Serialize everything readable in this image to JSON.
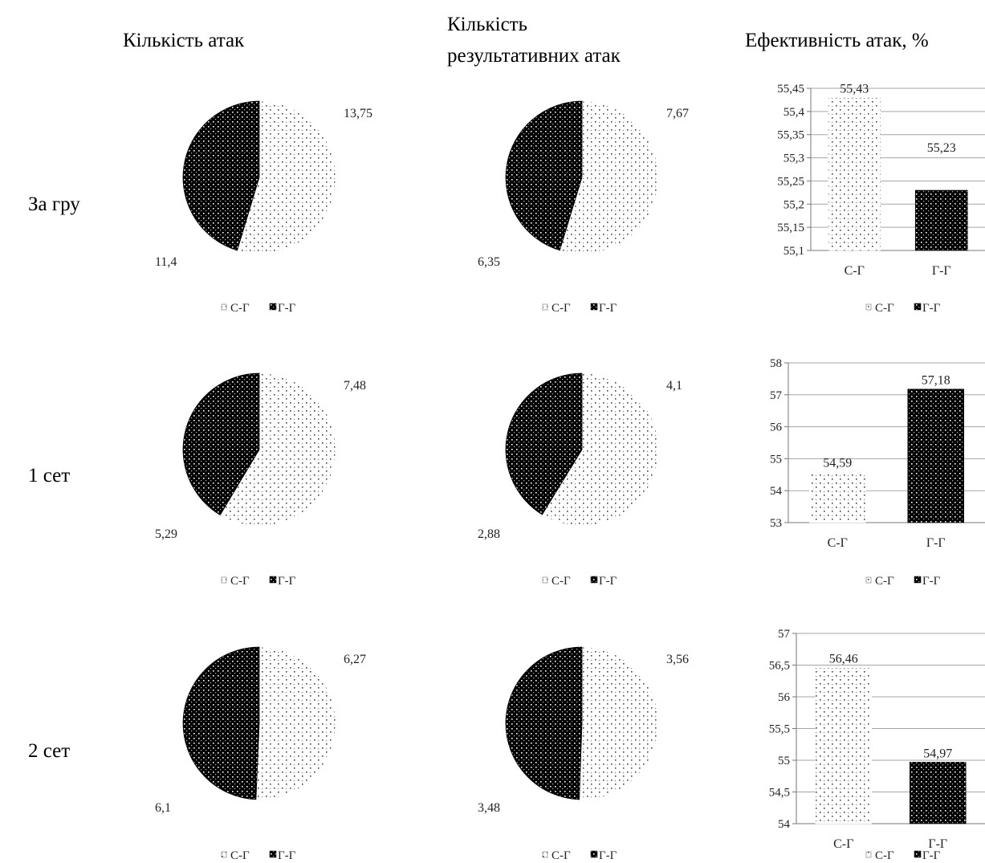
{
  "header": {
    "columns": [
      {
        "lines": [
          "Кількість атак"
        ]
      },
      {
        "lines": [
          "Кількість",
          "результативних атак"
        ]
      },
      {
        "lines": [
          "Ефективність атак, %"
        ]
      }
    ]
  },
  "rows": [
    {
      "label": "За гру"
    },
    {
      "label": "1 сет"
    },
    {
      "label": "2 сет"
    }
  ],
  "series_labels": [
    "С-Г",
    "Г-Г"
  ],
  "chart_data": [
    {
      "type": "pie",
      "row": 0,
      "col": 0,
      "categories": [
        "С-Г",
        "Г-Г"
      ],
      "values": [
        13.75,
        11.4
      ],
      "value_labels": [
        "13,75",
        "11,4"
      ]
    },
    {
      "type": "pie",
      "row": 0,
      "col": 1,
      "categories": [
        "С-Г",
        "Г-Г"
      ],
      "values": [
        7.67,
        6.35
      ],
      "value_labels": [
        "7,67",
        "6,35"
      ]
    },
    {
      "type": "bar",
      "row": 0,
      "col": 2,
      "categories": [
        "С-Г",
        "Г-Г"
      ],
      "values": [
        55.43,
        55.23
      ],
      "value_labels": [
        "55,43",
        "55,23"
      ],
      "ylim": [
        55.1,
        55.45
      ],
      "ticks": [
        55.1,
        55.15,
        55.2,
        55.25,
        55.3,
        55.35,
        55.4,
        55.45
      ],
      "tick_labels": [
        "55,1",
        "55,15",
        "55,2",
        "55,25",
        "55,3",
        "55,35",
        "55,4",
        "55,45"
      ],
      "grid": true
    },
    {
      "type": "pie",
      "row": 1,
      "col": 0,
      "categories": [
        "С-Г",
        "Г-Г"
      ],
      "values": [
        7.48,
        5.29
      ],
      "value_labels": [
        "7,48",
        "5,29"
      ]
    },
    {
      "type": "pie",
      "row": 1,
      "col": 1,
      "categories": [
        "С-Г",
        "Г-Г"
      ],
      "values": [
        4.1,
        2.88
      ],
      "value_labels": [
        "4,1",
        "2,88"
      ]
    },
    {
      "type": "bar",
      "row": 1,
      "col": 2,
      "categories": [
        "С-Г",
        "Г-Г"
      ],
      "values": [
        54.59,
        57.18
      ],
      "value_labels": [
        "54,59",
        "57,18"
      ],
      "ylim": [
        53,
        58
      ],
      "ticks": [
        53,
        54,
        55,
        56,
        57,
        58
      ],
      "tick_labels": [
        "53",
        "54",
        "55",
        "56",
        "57",
        "58"
      ],
      "grid": true
    },
    {
      "type": "pie",
      "row": 2,
      "col": 0,
      "categories": [
        "С-Г",
        "Г-Г"
      ],
      "values": [
        6.27,
        6.1
      ],
      "value_labels": [
        "6,27",
        "6,1"
      ]
    },
    {
      "type": "pie",
      "row": 2,
      "col": 1,
      "categories": [
        "С-Г",
        "Г-Г"
      ],
      "values": [
        3.56,
        3.48
      ],
      "value_labels": [
        "3,56",
        "3,48"
      ]
    },
    {
      "type": "bar",
      "row": 2,
      "col": 2,
      "categories": [
        "С-Г",
        "Г-Г"
      ],
      "values": [
        56.46,
        54.97
      ],
      "value_labels": [
        "56,46",
        "54,97"
      ],
      "ylim": [
        54,
        57
      ],
      "ticks": [
        54,
        54.5,
        55,
        55.5,
        56,
        56.5,
        57
      ],
      "tick_labels": [
        "54",
        "54,5",
        "55",
        "55,5",
        "56",
        "56,5",
        "57"
      ],
      "grid": true
    }
  ]
}
